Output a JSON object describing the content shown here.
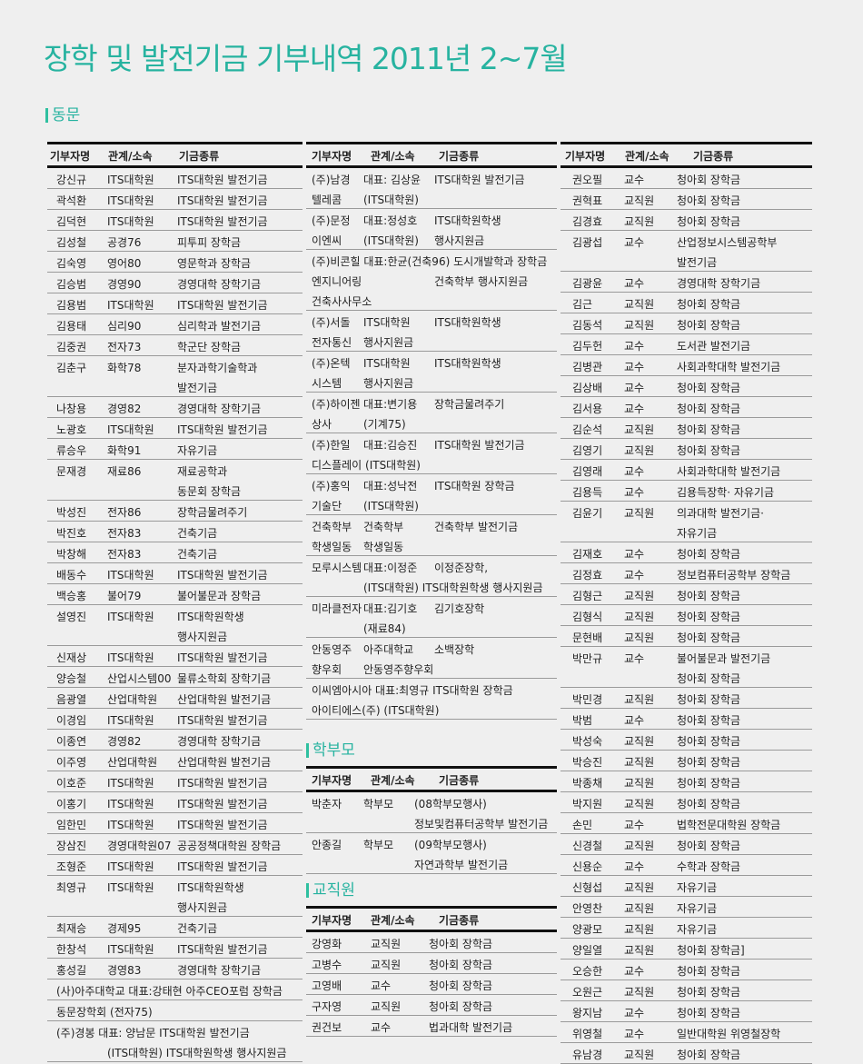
{
  "title": "장학 및 발전기금 기부내역 2011년 2~7월",
  "headers": [
    "기부자명",
    "관계/소속",
    "기금종류"
  ],
  "colors": {
    "accent": "#27b3a0"
  },
  "sections": [
    {
      "label": "동문",
      "tables": [
        {
          "rows": [
            [
              [
                "강신규",
                "ITS대학원",
                "ITS대학원 발전기금"
              ]
            ],
            [
              [
                "곽석환",
                "ITS대학원",
                "ITS대학원 발전기금"
              ]
            ],
            [
              [
                "김덕현",
                "ITS대학원",
                "ITS대학원 발전기금"
              ]
            ],
            [
              [
                "김성철",
                "공경76",
                "피투피 장학금"
              ]
            ],
            [
              [
                "김숙영",
                "영어80",
                "영문학과 장학금"
              ]
            ],
            [
              [
                "김승범",
                "경영90",
                "경영대학 장학기금"
              ]
            ],
            [
              [
                "김용범",
                "ITS대학원",
                "ITS대학원 발전기금"
              ]
            ],
            [
              [
                "김용태",
                "심리90",
                "심리학과 발전기금"
              ]
            ],
            [
              [
                "김중권",
                "전자73",
                "학군단 장학금"
              ]
            ],
            [
              [
                "김춘구",
                "화학78",
                "분자과학기술학과"
              ],
              [
                "",
                "",
                "발전기금"
              ]
            ],
            [
              [
                "나창용",
                "경영82",
                "경영대학 장학기금"
              ]
            ],
            [
              [
                "노광호",
                "ITS대학원",
                "ITS대학원 발전기금"
              ]
            ],
            [
              [
                "류승우",
                "화학91",
                "자유기금"
              ]
            ],
            [
              [
                "문재경",
                "재료86",
                "재료공학과"
              ],
              [
                "",
                "",
                "동문회 장학금"
              ]
            ],
            [
              [
                "박성진",
                "전자86",
                "장학금물려주기"
              ]
            ],
            [
              [
                "박진호",
                "전자83",
                "건축기금"
              ]
            ],
            [
              [
                "박창해",
                "전자83",
                "건축기금"
              ]
            ],
            [
              [
                "배동수",
                "ITS대학원",
                "ITS대학원 발전기금"
              ]
            ],
            [
              [
                "백승홍",
                "불어79",
                "불어불문과 장학금"
              ]
            ],
            [
              [
                "설영진",
                "ITS대학원",
                "ITS대학원학생"
              ],
              [
                "",
                "",
                "행사지원금"
              ]
            ],
            [
              [
                "신재상",
                "ITS대학원",
                "ITS대학원 발전기금"
              ]
            ],
            [
              [
                "양승철",
                "산업시스템00",
                "물류소학회 장학기금"
              ]
            ],
            [
              [
                "음광열",
                "산업대학원",
                "산업대학원 발전기금"
              ]
            ],
            [
              [
                "이경임",
                "ITS대학원",
                "ITS대학원 발전기금"
              ]
            ],
            [
              [
                "이종연",
                "경영82",
                "경영대학 장학기금"
              ]
            ],
            [
              [
                "이주영",
                "산업대학원",
                "산업대학원 발전기금"
              ]
            ],
            [
              [
                "이호준",
                "ITS대학원",
                "ITS대학원 발전기금"
              ]
            ],
            [
              [
                "이홍기",
                "ITS대학원",
                "ITS대학원 발전기금"
              ]
            ],
            [
              [
                "임한민",
                "ITS대학원",
                "ITS대학원 발전기금"
              ]
            ],
            [
              [
                "장삼진",
                "경영대학원07",
                "공공정책대학원 장학금"
              ]
            ],
            [
              [
                "조형준",
                "ITS대학원",
                "ITS대학원 발전기금"
              ]
            ],
            [
              [
                "최영규",
                "ITS대학원",
                "ITS대학원학생"
              ],
              [
                "",
                "",
                "행사지원금"
              ]
            ],
            [
              [
                "최재승",
                "경제95",
                "건축기금"
              ]
            ],
            [
              [
                "한창석",
                "ITS대학원",
                "ITS대학원 발전기금"
              ]
            ],
            [
              [
                "홍성길",
                "경영83",
                "경영대학 장학기금"
              ]
            ],
            [
              [
                "(사)아주대학교 대표:강태현 아주CEO포럼 장학금"
              ]
            ],
            [
              [
                "동문장학회 (전자75)"
              ]
            ],
            [
              [
                "(주)경봉 대표: 양남문 ITS대학원 발전기금"
              ],
              [
                "",
                "(ITS대학원)  ITS대학원학생 행사지원금"
              ]
            ]
          ]
        },
        {
          "rows": [
            [
              [
                "(주)남경",
                "대표: 김상윤",
                "ITS대학원 발전기금"
              ],
              [
                "텔레콤",
                "(ITS대학원)",
                ""
              ]
            ],
            [
              [
                "(주)문정",
                "대표:정성호",
                "ITS대학원학생"
              ],
              [
                "이엔씨",
                "(ITS대학원)",
                "행사지원금"
              ]
            ],
            [
              [
                "(주)비콘힐 대표:한균(건축96) 도시개발학과 장학금"
              ],
              [
                "엔지니어링",
                "",
                "건축학부 행사지원금"
              ],
              [
                "건축사사무소"
              ]
            ],
            [
              [
                "(주)서돌",
                "ITS대학원",
                "ITS대학원학생"
              ],
              [
                "전자통신",
                "행사지원금",
                ""
              ]
            ],
            [
              [
                "(주)온텍",
                "ITS대학원",
                "ITS대학원학생"
              ],
              [
                "시스템",
                "행사지원금",
                ""
              ]
            ],
            [
              [
                "(주)하이젠",
                "대표:변기용",
                "장학금물려주기"
              ],
              [
                "상사",
                "(기계75)",
                ""
              ]
            ],
            [
              [
                "(주)한일",
                "대표:김승진",
                "ITS대학원 발전기금"
              ],
              [
                "디스플레이 (ITS대학원)"
              ]
            ],
            [
              [
                "(주)홍익",
                "대표:성낙전",
                "ITS대학원 장학금"
              ],
              [
                "기술단",
                "(ITS대학원)",
                ""
              ]
            ],
            [
              [
                "건축학부",
                "건축학부",
                "건축학부 발전기금"
              ],
              [
                "학생일동",
                "학생일동",
                ""
              ]
            ],
            [
              [
                "모루시스템",
                "대표:이정준",
                "이정준장학,"
              ],
              [
                "",
                "(ITS대학원) ITS대학원학생 행사지원금"
              ]
            ],
            [
              [
                "미라클전자",
                "대표:김기호",
                "김기호장학"
              ],
              [
                "",
                "(재료84)",
                ""
              ]
            ],
            [
              [
                "안동영주",
                "아주대학교",
                "소백장학"
              ],
              [
                "향우회",
                "안동영주향우회",
                ""
              ]
            ],
            [
              [
                "이씨엠아시아 대표:최영규 ITS대학원 장학금"
              ],
              [
                "아이티에스(주) (ITS대학원)"
              ]
            ]
          ]
        }
      ]
    },
    {
      "label": "학부모",
      "tables": [
        {
          "rows": [
            [
              [
                "박춘자",
                "학부모",
                "(08학부모행사)"
              ],
              [
                "",
                "",
                "정보및컴퓨터공학부 발전기금"
              ]
            ],
            [
              [
                "안종길",
                "학부모",
                "(09학부모행사)"
              ],
              [
                "",
                "",
                "자연과학부 발전기금"
              ]
            ]
          ]
        }
      ]
    },
    {
      "label": "교직원",
      "tables": [
        {
          "rows": [
            [
              [
                "강영화",
                "교직원",
                "청아회 장학금"
              ]
            ],
            [
              [
                "고병수",
                "교직원",
                "청아회 장학금"
              ]
            ],
            [
              [
                "고영배",
                "교수",
                "청아회 장학금"
              ]
            ],
            [
              [
                "구자영",
                "교직원",
                "청아회 장학금"
              ]
            ],
            [
              [
                "권건보",
                "교수",
                "법과대학 발전기금"
              ]
            ]
          ]
        },
        {
          "rows": [
            [
              [
                "권오필",
                "교수",
                "청아회 장학금"
              ]
            ],
            [
              [
                "권혁표",
                "교직원",
                "청아회 장학금"
              ]
            ],
            [
              [
                "김경효",
                "교직원",
                "청아회 장학금"
              ]
            ],
            [
              [
                "김광섭",
                "교수",
                "산업정보시스템공학부"
              ],
              [
                "",
                "",
                "발전기금"
              ]
            ],
            [
              [
                "김광윤",
                "교수",
                "경영대학 장학기금"
              ]
            ],
            [
              [
                "김근",
                "교직원",
                "청아회 장학금"
              ]
            ],
            [
              [
                "김동석",
                "교직원",
                "청아회 장학금"
              ]
            ],
            [
              [
                "김두헌",
                "교수",
                "도서관 발전기금"
              ]
            ],
            [
              [
                "김병관",
                "교수",
                "사회과학대학 발전기금"
              ]
            ],
            [
              [
                "김상배",
                "교수",
                "청아회 장학금"
              ]
            ],
            [
              [
                "김서용",
                "교수",
                "청아회 장학금"
              ]
            ],
            [
              [
                "김순석",
                "교직원",
                "청아회 장학금"
              ]
            ],
            [
              [
                "김영기",
                "교직원",
                "청아회 장학금"
              ]
            ],
            [
              [
                "김영래",
                "교수",
                "사회과학대학 발전기금"
              ]
            ],
            [
              [
                "김용득",
                "교수",
                "김용득장학· 자유기금"
              ]
            ],
            [
              [
                "김윤기",
                "교직원",
                "의과대학 발전기금·"
              ],
              [
                "",
                "",
                "자유기금"
              ]
            ],
            [
              [
                "김재호",
                "교수",
                "청아회 장학금"
              ]
            ],
            [
              [
                "김정효",
                "교수",
                "정보컴퓨터공학부 장학금"
              ]
            ],
            [
              [
                "김형근",
                "교직원",
                "청아회 장학금"
              ]
            ],
            [
              [
                "김형식",
                "교직원",
                "청아회 장학금"
              ]
            ],
            [
              [
                "문현배",
                "교직원",
                "청아회 장학금"
              ]
            ],
            [
              [
                "박만규",
                "교수",
                "불어불문과 발전기금"
              ],
              [
                "",
                "",
                "청아회 장학금"
              ]
            ],
            [
              [
                "박민경",
                "교직원",
                "청아회 장학금"
              ]
            ],
            [
              [
                "박범",
                "교수",
                "청아회 장학금"
              ]
            ],
            [
              [
                "박성숙",
                "교직원",
                "청아회 장학금"
              ]
            ],
            [
              [
                "박승진",
                "교직원",
                "청아회 장학금"
              ]
            ],
            [
              [
                "박종채",
                "교직원",
                "청아회 장학금"
              ]
            ],
            [
              [
                "박지원",
                "교직원",
                "청아회 장학금"
              ]
            ],
            [
              [
                "손민",
                "교수",
                "법학전문대학원 장학금"
              ]
            ],
            [
              [
                "신경철",
                "교직원",
                "청아회 장학금"
              ]
            ],
            [
              [
                "신용순",
                "교수",
                "수학과 장학금"
              ]
            ],
            [
              [
                "신형섭",
                "교직원",
                "자유기금"
              ]
            ],
            [
              [
                "안영찬",
                "교직원",
                "자유기금"
              ]
            ],
            [
              [
                "양광모",
                "교직원",
                "자유기금"
              ]
            ],
            [
              [
                "양일열",
                "교직원",
                "청아회 장학금]"
              ]
            ],
            [
              [
                "오승한",
                "교수",
                "청아회 장학금"
              ]
            ],
            [
              [
                "오원근",
                "교직원",
                "청아회 장학금"
              ]
            ],
            [
              [
                "왕지남",
                "교수",
                "청아회 장학금"
              ]
            ],
            [
              [
                "위영철",
                "교수",
                "일반대학원 위영철장학"
              ]
            ],
            [
              [
                "유남경",
                "교직원",
                "청아회 장학금"
              ]
            ]
          ]
        }
      ]
    }
  ]
}
